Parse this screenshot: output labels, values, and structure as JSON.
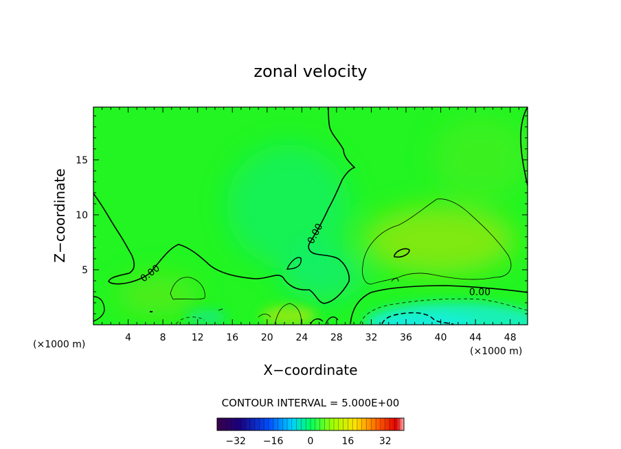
{
  "chart_data": {
    "type": "heatmap",
    "title": "zonal velocity",
    "xlabel": "X−coordinate",
    "ylabel": "Z−coordinate",
    "x_unit_left": "(×1000 m)",
    "x_unit_right": "(×1000 m)",
    "xlim": [
      0,
      50
    ],
    "ylim": [
      0,
      19.8
    ],
    "x_ticks": [
      4,
      8,
      12,
      16,
      20,
      24,
      28,
      32,
      36,
      40,
      44,
      48
    ],
    "y_ticks": [
      5,
      10,
      15
    ],
    "contour_interval_text": "CONTOUR INTERVAL = 5.000E+00",
    "contour_labels": [
      {
        "text": "0.00",
        "x": 6.5,
        "y": 4.7
      },
      {
        "text": "0.00",
        "x": 25.5,
        "y": 8.3
      },
      {
        "text": "0.00",
        "x": 44.5,
        "y": 3.0
      }
    ],
    "colorbar": {
      "min": -40,
      "max": 40,
      "tick_values": [
        -32,
        -16,
        0,
        16,
        32
      ],
      "tick_labels": [
        "−32",
        "−16",
        "0",
        "16",
        "32"
      ]
    },
    "features": [
      {
        "kind": "positive-region",
        "label": "weak positive velocity",
        "x": [
          31,
          47
        ],
        "y": [
          4,
          11.5
        ]
      },
      {
        "kind": "negative-region",
        "label": "negative velocity near ground",
        "x": [
          30,
          50
        ],
        "y": [
          0,
          3
        ]
      }
    ]
  },
  "colors": {
    "field_base": "#22f522",
    "positive_tint": "#a8e810",
    "negative_tint": "#10e8a0",
    "strong_negative": "#18f0c8",
    "contour_line": "#000000"
  }
}
